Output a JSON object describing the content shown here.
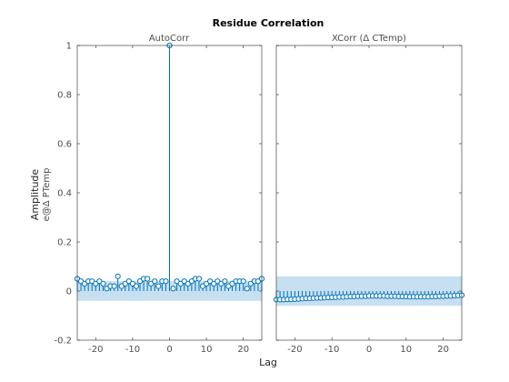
{
  "figure": {
    "title": "Residue Correlation",
    "xlabel": "Lag",
    "ylabel": "Amplitude",
    "ylabel_sub": "e@Δ PTemp"
  },
  "colors": {
    "stem": "#0072bd",
    "band": "#c6e0f2",
    "axis": "#262626"
  },
  "chart_data": [
    {
      "type": "stem",
      "title": "AutoCorr",
      "xlim": [
        -25,
        25
      ],
      "ylim": [
        -0.2,
        1
      ],
      "xticks": [
        -20,
        -10,
        0,
        10,
        20
      ],
      "yticks": [
        -0.2,
        0,
        0.2,
        0.4,
        0.6,
        0.8,
        1
      ],
      "ytick_labels": [
        "-0.2",
        "0",
        "0.2",
        "0.4",
        "0.6",
        "0.8",
        "1"
      ],
      "confidence_band": [
        -0.04,
        0.04
      ],
      "x": [
        -25,
        -24,
        -23,
        -22,
        -21,
        -20,
        -19,
        -18,
        -17,
        -16,
        -15,
        -14,
        -13,
        -12,
        -11,
        -10,
        -9,
        -8,
        -7,
        -6,
        -5,
        -4,
        -3,
        -2,
        -1,
        0,
        1,
        2,
        3,
        4,
        5,
        6,
        7,
        8,
        9,
        10,
        11,
        12,
        13,
        14,
        15,
        16,
        17,
        18,
        19,
        20,
        21,
        22,
        23,
        24,
        25
      ],
      "y": [
        0.05,
        0.04,
        0.03,
        0.04,
        0.04,
        0.03,
        0.04,
        0.03,
        0.01,
        0.02,
        0.02,
        0.06,
        0.02,
        0.03,
        0.04,
        0.03,
        0.02,
        0.04,
        0.05,
        0.05,
        0.03,
        0.04,
        0.02,
        0.04,
        0.04,
        1.0,
        0.01,
        0.04,
        0.03,
        0.04,
        0.03,
        0.04,
        0.05,
        0.05,
        0.02,
        0.03,
        0.04,
        0.03,
        0.04,
        0.03,
        0.04,
        0.02,
        0.03,
        0.04,
        0.04,
        0.04,
        0.01,
        0.03,
        0.04,
        0.04,
        0.05
      ]
    },
    {
      "type": "stem",
      "title": "XCorr (Δ CTemp)",
      "xlim": [
        -25,
        25
      ],
      "ylim": [
        -0.2,
        1
      ],
      "xticks": [
        -20,
        -10,
        0,
        10,
        20
      ],
      "yticks": [
        -0.2,
        0,
        0.2,
        0.4,
        0.6,
        0.8,
        1
      ],
      "confidence_band": [
        -0.06,
        0.06
      ],
      "x": [
        -25,
        -24,
        -23,
        -22,
        -21,
        -20,
        -19,
        -18,
        -17,
        -16,
        -15,
        -14,
        -13,
        -12,
        -11,
        -10,
        -9,
        -8,
        -7,
        -6,
        -5,
        -4,
        -3,
        -2,
        -1,
        0,
        1,
        2,
        3,
        4,
        5,
        6,
        7,
        8,
        9,
        10,
        11,
        12,
        13,
        14,
        15,
        16,
        17,
        18,
        19,
        20,
        21,
        22,
        23,
        24,
        25
      ],
      "y": [
        -0.035,
        -0.035,
        -0.035,
        -0.034,
        -0.034,
        -0.033,
        -0.032,
        -0.031,
        -0.03,
        -0.03,
        -0.029,
        -0.028,
        -0.028,
        -0.027,
        -0.026,
        -0.026,
        -0.025,
        -0.024,
        -0.024,
        -0.023,
        -0.022,
        -0.022,
        -0.021,
        -0.021,
        -0.021,
        -0.02,
        -0.02,
        -0.02,
        -0.02,
        -0.02,
        -0.021,
        -0.021,
        -0.021,
        -0.022,
        -0.022,
        -0.022,
        -0.023,
        -0.023,
        -0.023,
        -0.023,
        -0.023,
        -0.023,
        -0.022,
        -0.022,
        -0.021,
        -0.021,
        -0.02,
        -0.02,
        -0.019,
        -0.018,
        -0.017
      ]
    }
  ]
}
